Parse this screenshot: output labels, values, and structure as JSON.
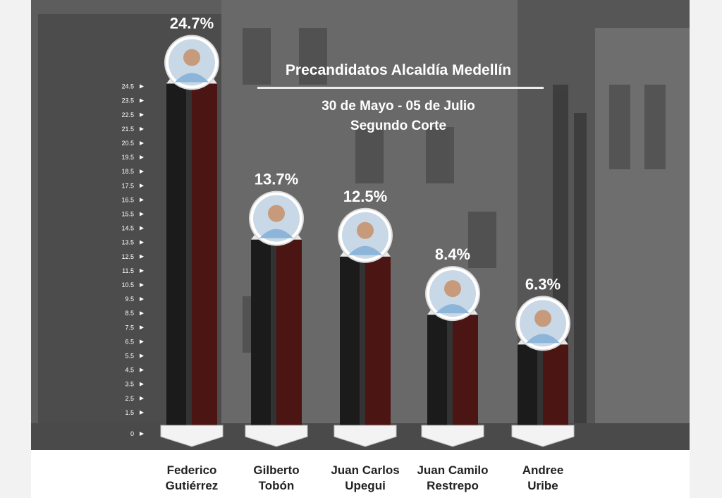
{
  "title": "Precandidatos Alcaldía Medellín",
  "subtitle_line1": "30 de Mayo - 05 de Julio",
  "subtitle_line2": "Segundo Corte",
  "chart_data": {
    "type": "bar",
    "title": "Precandidatos Alcaldía Medellín",
    "subtitle": "30 de Mayo - 05 de Julio / Segundo Corte",
    "categories": [
      "Federico Gutiérrez",
      "Gilberto Tobón",
      "Juan Carlos Upegui",
      "Juan Camilo Restrepo",
      "Andree Uribe"
    ],
    "category_lines": [
      [
        "Federico",
        "Gutiérrez"
      ],
      [
        "Gilberto",
        "Tobón"
      ],
      [
        "Juan Carlos",
        "Upegui"
      ],
      [
        "Juan Camilo",
        "Restrepo"
      ],
      [
        "Andree",
        "Uribe"
      ]
    ],
    "values": [
      24.7,
      13.7,
      12.5,
      8.4,
      6.3
    ],
    "value_labels": [
      "24.7%",
      "13.7%",
      "12.5%",
      "8.4%",
      "6.3%"
    ],
    "yticks": [
      "0",
      "1.5",
      "2.5",
      "3.5",
      "4.5",
      "5.5",
      "6.5",
      "7.5",
      "8.5",
      "9.5",
      "10.5",
      "11.5",
      "12.5",
      "13.5",
      "14.5",
      "15.5",
      "16.5",
      "17.5",
      "18.5",
      "19.5",
      "20.5",
      "21.5",
      "22.5",
      "23.5",
      "24.5"
    ],
    "ylim": [
      0,
      25
    ],
    "colors": {
      "bar_left": "#1b1b1b",
      "bar_right": "#4a1512",
      "cap": "#e8e8e8"
    }
  }
}
